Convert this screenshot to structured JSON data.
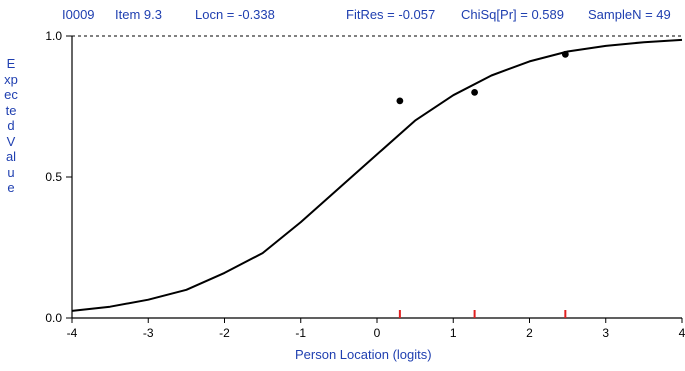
{
  "header": {
    "item_id": "I0009",
    "item_name": "Item 9.3",
    "locn": "Locn = -0.338",
    "fitres": "FitRes = -0.057",
    "chisq": "ChiSq[Pr] = 0.589",
    "samplen": "SampleN = 49"
  },
  "chart_data": {
    "type": "line",
    "ylabel": "Expected Value",
    "xlabel": "Person Location (logits)",
    "xlim": [
      -4,
      4
    ],
    "ylim": [
      0,
      1
    ],
    "x_ticks": [
      "-4",
      "-3",
      "-2",
      "-1",
      "0",
      "1",
      "2",
      "3",
      "4"
    ],
    "y_ticks": [
      "0.0",
      "0.5",
      "1.0"
    ],
    "reference_line": {
      "y": 1.0,
      "style": "dotted"
    },
    "curve": {
      "function": "logistic",
      "location": -0.338,
      "x": [
        -4.0,
        -3.5,
        -3.0,
        -2.5,
        -2.0,
        -1.5,
        -1.0,
        -0.5,
        0.0,
        0.5,
        1.0,
        1.5,
        2.0,
        2.5,
        3.0,
        3.5,
        4.0
      ],
      "y": [
        0.025,
        0.04,
        0.065,
        0.1,
        0.16,
        0.23,
        0.34,
        0.46,
        0.58,
        0.7,
        0.79,
        0.86,
        0.91,
        0.945,
        0.965,
        0.978,
        0.986
      ]
    },
    "observed_points": {
      "x": [
        0.3,
        1.28,
        2.47
      ],
      "y": [
        0.77,
        0.8,
        0.935
      ]
    },
    "class_interval_marks": {
      "x": [
        0.3,
        1.28,
        2.47
      ],
      "color": "#e02020"
    },
    "colors": {
      "label_text": "#1f3fb0",
      "curve": "#000000",
      "axis": "#000000",
      "marks": "#e02020"
    }
  }
}
